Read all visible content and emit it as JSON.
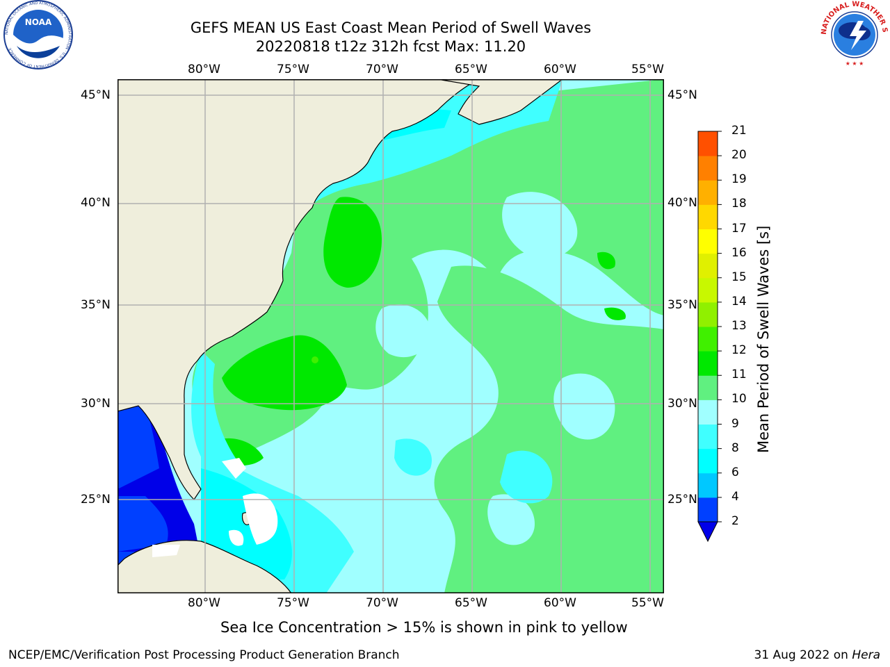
{
  "header": {
    "title_line1": "GEFS MEAN US East Coast Mean Period of Swell Waves",
    "title_line2": "20220818 t12z 312h fcst   Max: 11.20"
  },
  "logos": {
    "left": "NOAA",
    "left_ring": "NATIONAL OCEANIC AND ATMOSPHERIC ADMINISTRATION · U.S. DEPARTMENT OF COMMERCE",
    "right_ring": "NATIONAL WEATHER SERVICE"
  },
  "axes": {
    "lon_labels": [
      "80°W",
      "75°W",
      "70°W",
      "65°W",
      "60°W",
      "55°W"
    ],
    "lat_labels": [
      "45°N",
      "40°N",
      "35°N",
      "30°N",
      "25°N"
    ]
  },
  "colorbar": {
    "title": "Mean Period of Swell Waves [s]",
    "levels": [
      "2",
      "4",
      "6",
      "8",
      "9",
      "10",
      "11",
      "12",
      "13",
      "14",
      "15",
      "16",
      "17",
      "18",
      "19",
      "20",
      "21"
    ],
    "colors": [
      "#0040ff",
      "#00c8ff",
      "#00ffff",
      "#40ffff",
      "#a0ffff",
      "#60f080",
      "#00e800",
      "#40f000",
      "#90f000",
      "#c8f800",
      "#e0f000",
      "#ffff00",
      "#ffd800",
      "#ffb000",
      "#ff8000",
      "#ff5000",
      "#ff0000"
    ],
    "extend_color": "#0000e8"
  },
  "footer": {
    "note": "Sea Ice Concentration > 15% is shown in pink to yellow",
    "credit": "NCEP/EMC/Verification Post Processing Product Generation Branch",
    "date": "31 Aug 2022 on",
    "machine": "Hera"
  }
}
